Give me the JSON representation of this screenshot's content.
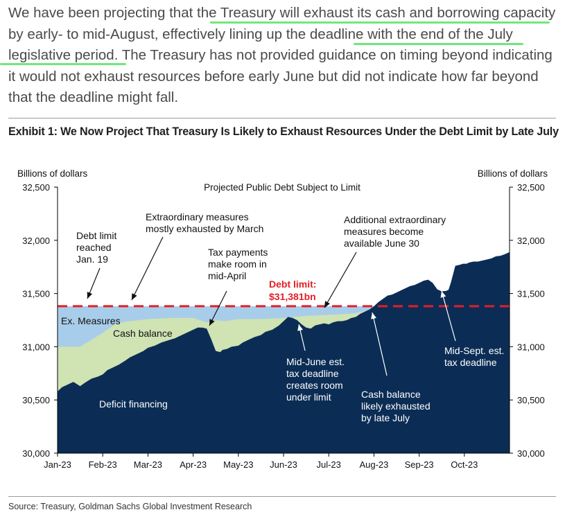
{
  "intro_paragraph": "We have been projecting that the Treasury will exhaust its cash and borrowing capacity by early- to mid-August, effectively lining up the deadline with the end of the July legislative period. The Treasury has not provided guidance on timing beyond indicating it would not exhaust resources before early June but did not indicate how far beyond that the deadline might fall.",
  "colors": {
    "deficit": "#0b2d55",
    "cash": "#cfe3b3",
    "measures": "#a8cdea",
    "debt_limit": "#e41e26",
    "highlight": "#6ee87a"
  },
  "exhibit_title": "Exhibit 1: We Now Project That Treasury Is Likely to Exhaust Resources Under the Debt Limit by Late July",
  "source": "Source: Treasury, Goldman Sachs Global Investment Research",
  "chart_data": {
    "type": "area",
    "title": "Projected Public Debt Subject to Limit",
    "ylabel_left": "Billions of dollars",
    "ylabel_right": "Billions of dollars",
    "ylim": [
      30000,
      32500
    ],
    "yticks": [
      30000,
      30500,
      31000,
      31500,
      32000,
      32500
    ],
    "ytick_labels": [
      "30,000",
      "30,500",
      "31,000",
      "31,500",
      "32,000",
      "32,500"
    ],
    "xlim": [
      0,
      10
    ],
    "xticks": [
      0,
      1,
      2,
      3,
      4,
      5,
      6,
      7,
      8,
      9
    ],
    "xtick_labels": [
      "Jan-23",
      "Feb-23",
      "Mar-23",
      "Apr-23",
      "May-23",
      "Jun-23",
      "Jul-23",
      "Aug-23",
      "Sep-23",
      "Oct-23"
    ],
    "debt_limit": 31381,
    "debt_limit_label_1": "Debt limit:",
    "debt_limit_label_2": "$31,381bn",
    "series": [
      {
        "name": "Deficit financing",
        "x": [
          0,
          0.1,
          0.2,
          0.35,
          0.5,
          0.6,
          0.75,
          0.9,
          1.0,
          1.1,
          1.2,
          1.35,
          1.5,
          1.6,
          1.75,
          1.9,
          2.0,
          2.15,
          2.3,
          2.45,
          2.6,
          2.75,
          2.9,
          3.0,
          3.1,
          3.2,
          3.3,
          3.4,
          3.5,
          3.6,
          3.65,
          3.75,
          3.85,
          4.0,
          4.1,
          4.2,
          4.35,
          4.5,
          4.6,
          4.75,
          4.9,
          5.0,
          5.1,
          5.2,
          5.3,
          5.4,
          5.5,
          5.6,
          5.7,
          5.8,
          5.9,
          6.0,
          6.1,
          6.2,
          6.3,
          6.4,
          6.5,
          6.6,
          6.7,
          6.8,
          6.9,
          7.0,
          7.1,
          7.2,
          7.3,
          7.4,
          7.5,
          7.6,
          7.7,
          7.8,
          7.9,
          8.0,
          8.1,
          8.2,
          8.3,
          8.4,
          8.5,
          8.6,
          8.65,
          8.7,
          8.8,
          8.9,
          8.97,
          9.05,
          9.1,
          9.2,
          9.3,
          9.4,
          9.5,
          9.6,
          9.7,
          9.8,
          9.9,
          10.0
        ],
        "values": [
          30580,
          30620,
          30640,
          30670,
          30630,
          30660,
          30700,
          30720,
          30740,
          30780,
          30800,
          30830,
          30870,
          30900,
          30930,
          30960,
          30990,
          31010,
          31040,
          31060,
          31080,
          31110,
          31140,
          31160,
          31180,
          31180,
          31170,
          31070,
          30960,
          30950,
          30970,
          30980,
          31000,
          31010,
          31040,
          31060,
          31090,
          31110,
          31140,
          31160,
          31200,
          31240,
          31280,
          31270,
          31250,
          31210,
          31180,
          31170,
          31200,
          31210,
          31220,
          31210,
          31230,
          31240,
          31240,
          31250,
          31270,
          31280,
          31310,
          31330,
          31350,
          31380,
          31420,
          31450,
          31480,
          31490,
          31510,
          31530,
          31550,
          31570,
          31580,
          31600,
          31620,
          31630,
          31600,
          31540,
          31520,
          31525,
          31535,
          31600,
          31760,
          31770,
          31780,
          31780,
          31790,
          31800,
          31800,
          31810,
          31820,
          31830,
          31850,
          31855,
          31870,
          31890
        ]
      },
      {
        "name": "Cash balance",
        "x": [
          0,
          0.5,
          1.0,
          1.3,
          1.6,
          2.0,
          2.5,
          3.0,
          3.3,
          3.5,
          3.7,
          4.0,
          4.5,
          5.0,
          5.5,
          6.0,
          6.5,
          6.9,
          7.0
        ],
        "values": [
          31000,
          31000,
          31130,
          31220,
          31240,
          31260,
          31270,
          31270,
          31230,
          31250,
          31240,
          31260,
          31260,
          31270,
          31290,
          31300,
          31310,
          31340,
          31381
        ]
      },
      {
        "name": "Ex. Measures",
        "x": [
          0,
          7.0
        ],
        "values": [
          31381,
          31381
        ]
      }
    ],
    "annotations": [
      {
        "text": [
          "Debt limit",
          "reached",
          "Jan. 19"
        ]
      },
      {
        "text": [
          "Extraordinary measures",
          "mostly exhausted by March"
        ]
      },
      {
        "text": [
          "Tax payments",
          "make room in",
          "mid-April"
        ]
      },
      {
        "text": [
          "Additional extraordinary",
          "measures become",
          "available June 30"
        ]
      },
      {
        "text": [
          "Mid-June est.",
          "tax deadline",
          "creates room",
          "under limit"
        ]
      },
      {
        "text": [
          "Cash balance",
          "likely exhausted",
          "by late July"
        ]
      },
      {
        "text": [
          "Mid-Sept. est.",
          "tax deadline"
        ]
      }
    ],
    "area_labels": {
      "measures": "Ex. Measures",
      "cash": "Cash balance",
      "deficit": "Deficit financing"
    }
  }
}
